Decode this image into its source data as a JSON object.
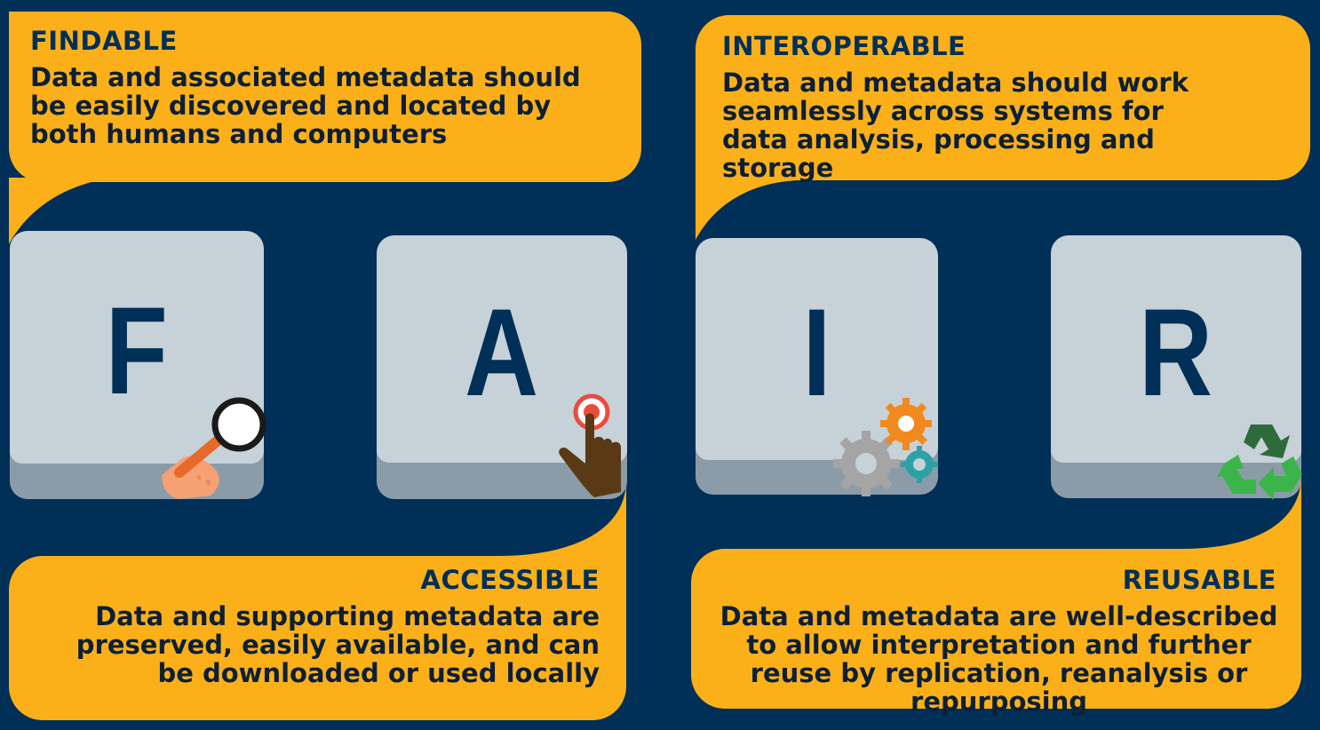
{
  "findable": {
    "title": "FINDABLE",
    "description": "Data and associated metadata should be easily discovered and located by both humans and computers",
    "key_letter": "F",
    "icon": "magnifier-icon"
  },
  "interoperable": {
    "title": "INTEROPERABLE",
    "description": "Data and metadata should work seamlessly across systems for data analysis, processing and storage",
    "key_letter": "I",
    "icon": "gears-icon"
  },
  "accessible": {
    "title": "ACCESSIBLE",
    "description": "Data and supporting metadata are preserved, easily available, and can be downloaded or used locally",
    "key_letter": "A",
    "icon": "pointing-hand-icon"
  },
  "reusable": {
    "title": "REUSABLE",
    "description": "Data and metadata are well-described to allow interpretation and further reuse by replication, reanalysis or repurposing",
    "key_letter": "R",
    "icon": "recycle-icon"
  },
  "colors": {
    "background": "#002f57",
    "card": "#fbb019",
    "key_face": "#c7d1d8",
    "key_side": "#8b9ca8",
    "letter": "#002f57"
  }
}
